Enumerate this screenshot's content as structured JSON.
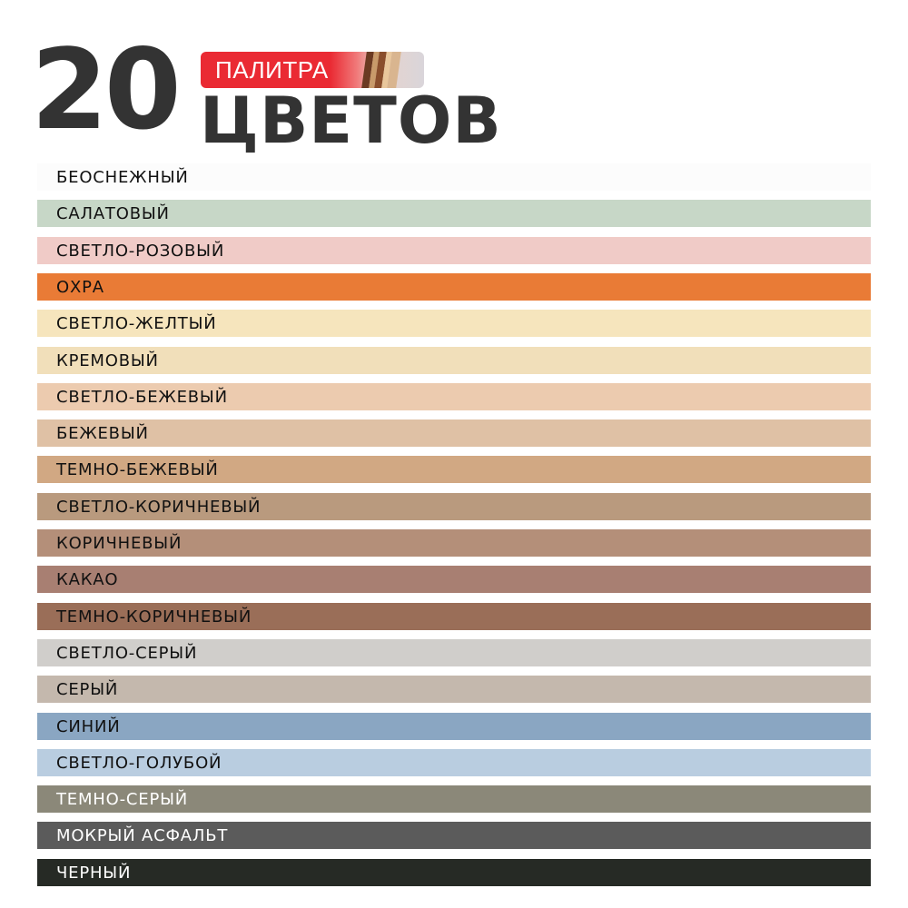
{
  "header": {
    "number": "20",
    "badge": "ПАЛИТРА",
    "title": "ЦВЕТОВ",
    "badge_color": "#ea2a33"
  },
  "colors": [
    {
      "name": "БЕОСНЕЖНЫЙ",
      "hex": "#fcfcfc",
      "text": "#111111"
    },
    {
      "name": "САЛАТОВЫЙ",
      "hex": "#c7d7c7",
      "text": "#111111"
    },
    {
      "name": "СВЕТЛО-РОЗОВЫЙ",
      "hex": "#f0cbc7",
      "text": "#111111"
    },
    {
      "name": "ОХРА",
      "hex": "#e97b36",
      "text": "#111111"
    },
    {
      "name": "СВЕТЛО-ЖЕЛТЫЙ",
      "hex": "#f6e5bd",
      "text": "#111111"
    },
    {
      "name": "КРЕМОВЫЙ",
      "hex": "#f1dfba",
      "text": "#111111"
    },
    {
      "name": "СВЕТЛО-БЕЖЕВЫЙ",
      "hex": "#eccbaf",
      "text": "#111111"
    },
    {
      "name": "БЕЖЕВЫЙ",
      "hex": "#dfc1a5",
      "text": "#111111"
    },
    {
      "name": "ТЕМНО-БЕЖЕВЫЙ",
      "hex": "#d1a883",
      "text": "#111111"
    },
    {
      "name": "СВЕТЛО-КОРИЧНЕВЫЙ",
      "hex": "#b99a7e",
      "text": "#111111"
    },
    {
      "name": "КОРИЧНЕВЫЙ",
      "hex": "#b48f79",
      "text": "#111111"
    },
    {
      "name": "КАКАО",
      "hex": "#a87f72",
      "text": "#111111"
    },
    {
      "name": "ТЕМНО-КОРИЧНЕВЫЙ",
      "hex": "#9a6e58",
      "text": "#111111"
    },
    {
      "name": "СВЕТЛО-СЕРЫЙ",
      "hex": "#d0cecb",
      "text": "#111111"
    },
    {
      "name": "СЕРЫЙ",
      "hex": "#c4b8ad",
      "text": "#111111"
    },
    {
      "name": "СИНИЙ",
      "hex": "#8aa6c2",
      "text": "#111111"
    },
    {
      "name": "СВЕТЛО-ГОЛУБОЙ",
      "hex": "#b9cde0",
      "text": "#111111"
    },
    {
      "name": "ТЕМНО-СЕРЫЙ",
      "hex": "#8b8879",
      "text": "#ffffff"
    },
    {
      "name": "МОКРЫЙ АСФАЛЬТ",
      "hex": "#5b5b5b",
      "text": "#ffffff"
    },
    {
      "name": "ЧЕРНЫЙ",
      "hex": "#262a25",
      "text": "#ffffff"
    }
  ]
}
